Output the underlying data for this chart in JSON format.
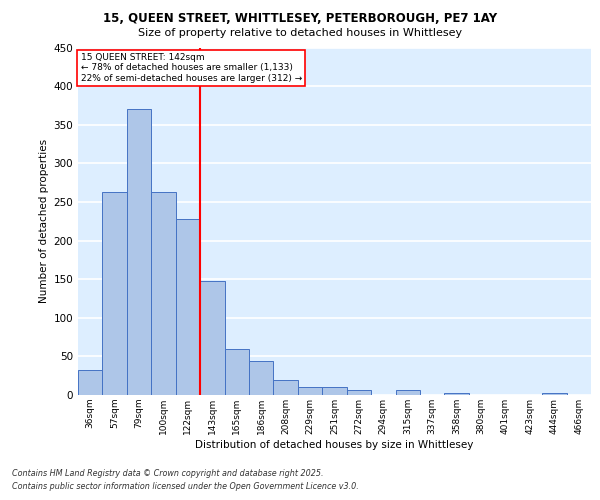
{
  "title_line1": "15, QUEEN STREET, WHITTLESEY, PETERBOROUGH, PE7 1AY",
  "title_line2": "Size of property relative to detached houses in Whittlesey",
  "xlabel": "Distribution of detached houses by size in Whittlesey",
  "ylabel": "Number of detached properties",
  "categories": [
    "36sqm",
    "57sqm",
    "79sqm",
    "100sqm",
    "122sqm",
    "143sqm",
    "165sqm",
    "186sqm",
    "208sqm",
    "229sqm",
    "251sqm",
    "272sqm",
    "294sqm",
    "315sqm",
    "337sqm",
    "358sqm",
    "380sqm",
    "401sqm",
    "423sqm",
    "444sqm",
    "466sqm"
  ],
  "values": [
    32,
    263,
    370,
    263,
    228,
    148,
    60,
    44,
    19,
    11,
    11,
    7,
    0,
    6,
    0,
    2,
    0,
    0,
    0,
    3,
    0
  ],
  "bar_color": "#aec6e8",
  "bar_edge_color": "#4472c4",
  "vline_color": "red",
  "annotation_title": "15 QUEEN STREET: 142sqm",
  "annotation_line1": "← 78% of detached houses are smaller (1,133)",
  "annotation_line2": "22% of semi-detached houses are larger (312) →",
  "annotation_box_color": "white",
  "annotation_box_edge": "red",
  "ylim": [
    0,
    450
  ],
  "yticks": [
    0,
    50,
    100,
    150,
    200,
    250,
    300,
    350,
    400,
    450
  ],
  "footer_line1": "Contains HM Land Registry data © Crown copyright and database right 2025.",
  "footer_line2": "Contains public sector information licensed under the Open Government Licence v3.0.",
  "bg_color": "#ddeeff",
  "grid_color": "white",
  "fig_bg": "#ffffff"
}
